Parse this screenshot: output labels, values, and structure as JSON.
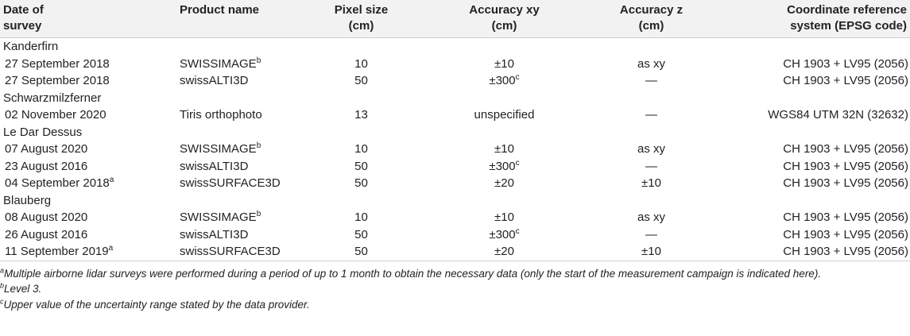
{
  "header": {
    "date": [
      "Date of",
      "survey"
    ],
    "product": [
      "Product name"
    ],
    "pixel": [
      "Pixel size",
      "(cm)"
    ],
    "acc_xy": [
      "Accuracy xy",
      "(cm)"
    ],
    "acc_z": [
      "Accuracy z",
      "(cm)"
    ],
    "crs": [
      "Coordinate reference",
      "system (EPSG code)"
    ]
  },
  "groups": [
    {
      "name": "Kanderfirn",
      "rows": [
        {
          "date": "27 September 2018",
          "date_sup": "",
          "product": "SWISSIMAGE",
          "product_sup": "b",
          "pixel": "10",
          "xy": "±10",
          "xy_sup": "",
          "z": "as xy",
          "crs": "CH 1903 + LV95 (2056)"
        },
        {
          "date": "27 September 2018",
          "date_sup": "",
          "product": "swissALTI3D",
          "product_sup": "",
          "pixel": "50",
          "xy": "±300",
          "xy_sup": "c",
          "z": "—",
          "crs": "CH 1903 + LV95 (2056)"
        }
      ]
    },
    {
      "name": "Schwarzmilzferner",
      "rows": [
        {
          "date": "02 November 2020",
          "date_sup": "",
          "product": "Tiris orthophoto",
          "product_sup": "",
          "pixel": "13",
          "xy": "unspecified",
          "xy_sup": "",
          "z": "—",
          "crs": "WGS84 UTM 32N (32632)"
        }
      ]
    },
    {
      "name": "Le Dar Dessus",
      "rows": [
        {
          "date": "07 August 2020",
          "date_sup": "",
          "product": "SWISSIMAGE",
          "product_sup": "b",
          "pixel": "10",
          "xy": "±10",
          "xy_sup": "",
          "z": "as xy",
          "crs": "CH 1903 + LV95 (2056)"
        },
        {
          "date": "23 August 2016",
          "date_sup": "",
          "product": "swissALTI3D",
          "product_sup": "",
          "pixel": "50",
          "xy": "±300",
          "xy_sup": "c",
          "z": "—",
          "crs": "CH 1903 + LV95 (2056)"
        },
        {
          "date": "04 September 2018",
          "date_sup": "a",
          "product": "swissSURFACE3D",
          "product_sup": "",
          "pixel": "50",
          "xy": "±20",
          "xy_sup": "",
          "z": "±10",
          "crs": "CH 1903 + LV95 (2056)"
        }
      ]
    },
    {
      "name": "Blauberg",
      "rows": [
        {
          "date": "08 August 2020",
          "date_sup": "",
          "product": "SWISSIMAGE",
          "product_sup": "b",
          "pixel": "10",
          "xy": "±10",
          "xy_sup": "",
          "z": "as xy",
          "crs": "CH 1903 + LV95 (2056)"
        },
        {
          "date": "26 August 2016",
          "date_sup": "",
          "product": "swissALTI3D",
          "product_sup": "",
          "pixel": "50",
          "xy": "±300",
          "xy_sup": "c",
          "z": "—",
          "crs": "CH 1903 + LV95 (2056)"
        },
        {
          "date": "11 September 2019",
          "date_sup": "a",
          "product": "swissSURFACE3D",
          "product_sup": "",
          "pixel": "50",
          "xy": "±20",
          "xy_sup": "",
          "z": "±10",
          "crs": "CH 1903 + LV95 (2056)"
        }
      ]
    }
  ],
  "footnotes": [
    {
      "mark": "a",
      "text": "Multiple airborne lidar surveys were performed during a period of up to 1 month to obtain the necessary data (only the start of the measurement campaign is indicated here)."
    },
    {
      "mark": "b",
      "text": "Level 3."
    },
    {
      "mark": "c",
      "text": "Upper value of the uncertainty range stated by the data provider."
    }
  ]
}
